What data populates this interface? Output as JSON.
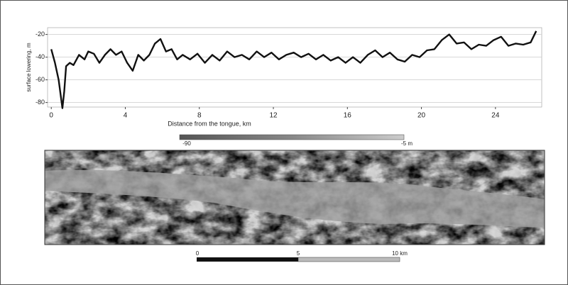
{
  "chart_data": {
    "type": "line",
    "x_label": "Distance from the tongue, km",
    "y_label": "surface lowering, m",
    "x": [
      0,
      0.2,
      0.4,
      0.6,
      0.7,
      0.8,
      1.0,
      1.2,
      1.5,
      1.8,
      2.0,
      2.3,
      2.6,
      2.9,
      3.2,
      3.5,
      3.8,
      4.1,
      4.4,
      4.7,
      5.0,
      5.3,
      5.6,
      5.9,
      6.2,
      6.5,
      6.8,
      7.1,
      7.5,
      7.9,
      8.3,
      8.7,
      9.1,
      9.5,
      9.9,
      10.3,
      10.7,
      11.1,
      11.5,
      11.9,
      12.3,
      12.7,
      13.1,
      13.5,
      13.9,
      14.3,
      14.7,
      15.1,
      15.5,
      15.9,
      16.3,
      16.7,
      17.1,
      17.5,
      17.9,
      18.3,
      18.7,
      19.1,
      19.5,
      19.9,
      20.3,
      20.7,
      21.1,
      21.5,
      21.9,
      22.3,
      22.7,
      23.1,
      23.5,
      23.9,
      24.3,
      24.7,
      25.1,
      25.5,
      25.9,
      26.2
    ],
    "y": [
      -33,
      -45,
      -60,
      -85,
      -70,
      -48,
      -45,
      -47,
      -38,
      -42,
      -35,
      -37,
      -45,
      -38,
      -33,
      -38,
      -35,
      -45,
      -52,
      -38,
      -43,
      -38,
      -28,
      -24,
      -35,
      -33,
      -42,
      -38,
      -42,
      -37,
      -45,
      -38,
      -43,
      -35,
      -40,
      -38,
      -42,
      -35,
      -40,
      -36,
      -42,
      -38,
      -36,
      -40,
      -37,
      -42,
      -38,
      -43,
      -40,
      -45,
      -40,
      -45,
      -38,
      -34,
      -40,
      -36,
      -42,
      -44,
      -38,
      -40,
      -34,
      -33,
      -25,
      -20,
      -28,
      -27,
      -33,
      -29,
      -30,
      -25,
      -22,
      -30,
      -28,
      -29,
      -27,
      -17
    ],
    "color": "#111111",
    "xlim": [
      -0.2,
      26.5
    ],
    "ylim": [
      -84,
      -14
    ],
    "xticks": [
      0,
      4,
      8,
      12,
      16,
      20,
      24
    ],
    "yticks": [
      -80,
      -60,
      -40,
      -20
    ],
    "grid": true,
    "colorbar": {
      "labels": [
        "-90",
        "-5 m"
      ]
    },
    "scale_bar": {
      "labels": [
        "0",
        "5",
        "10 km"
      ]
    }
  }
}
